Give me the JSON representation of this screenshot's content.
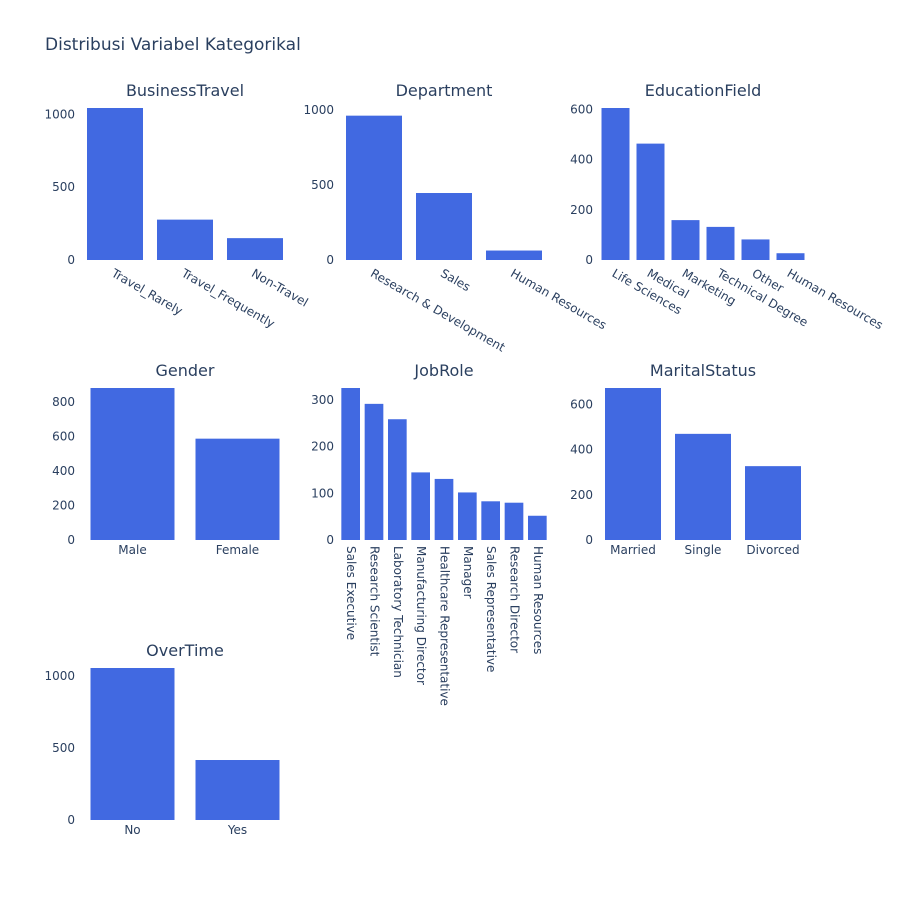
{
  "title": "Distribusi Variabel Kategorikal",
  "colors": {
    "bar": "#4169e1",
    "text": "#2a3f5f"
  },
  "chart_data": [
    {
      "type": "bar",
      "title": "BusinessTravel",
      "categories": [
        "Travel_Rarely",
        "Travel_Frequently",
        "Non-Travel"
      ],
      "values": [
        1043,
        277,
        150
      ],
      "yticks": [
        0,
        500,
        1000
      ],
      "ylim": [
        0,
        1043
      ]
    },
    {
      "type": "bar",
      "title": "Department",
      "categories": [
        "Research & Development",
        "Sales",
        "Human Resources"
      ],
      "values": [
        961,
        446,
        63
      ],
      "yticks": [
        0,
        500,
        1000
      ],
      "ylim": [
        0,
        1012
      ]
    },
    {
      "type": "bar",
      "title": "EducationField",
      "categories": [
        "Life Sciences",
        "Medical",
        "Marketing",
        "Technical Degree",
        "Other",
        "Human Resources"
      ],
      "values": [
        606,
        464,
        159,
        132,
        82,
        27
      ],
      "yticks": [
        0,
        200,
        400,
        600
      ],
      "ylim": [
        0,
        606
      ]
    },
    {
      "type": "bar",
      "title": "Gender",
      "categories": [
        "Male",
        "Female"
      ],
      "values": [
        882,
        588
      ],
      "yticks": [
        0,
        200,
        400,
        600,
        800
      ],
      "ylim": [
        0,
        882
      ]
    },
    {
      "type": "bar",
      "title": "JobRole",
      "categories": [
        "Sales Executive",
        "Research Scientist",
        "Laboratory Technician",
        "Manufacturing Director",
        "Healthcare Representative",
        "Manager",
        "Sales Representative",
        "Research Director",
        "Human Resources"
      ],
      "values": [
        326,
        292,
        259,
        145,
        131,
        102,
        83,
        80,
        52
      ],
      "yticks": [
        0,
        100,
        200,
        300
      ],
      "ylim": [
        0,
        326
      ]
    },
    {
      "type": "bar",
      "title": "MaritalStatus",
      "categories": [
        "Married",
        "Single",
        "Divorced"
      ],
      "values": [
        673,
        470,
        327
      ],
      "yticks": [
        0,
        200,
        400,
        600
      ],
      "ylim": [
        0,
        673
      ]
    },
    {
      "type": "bar",
      "title": "OverTime",
      "categories": [
        "No",
        "Yes"
      ],
      "values": [
        1054,
        416
      ],
      "yticks": [
        0,
        500,
        1000
      ],
      "ylim": [
        0,
        1054
      ]
    }
  ]
}
